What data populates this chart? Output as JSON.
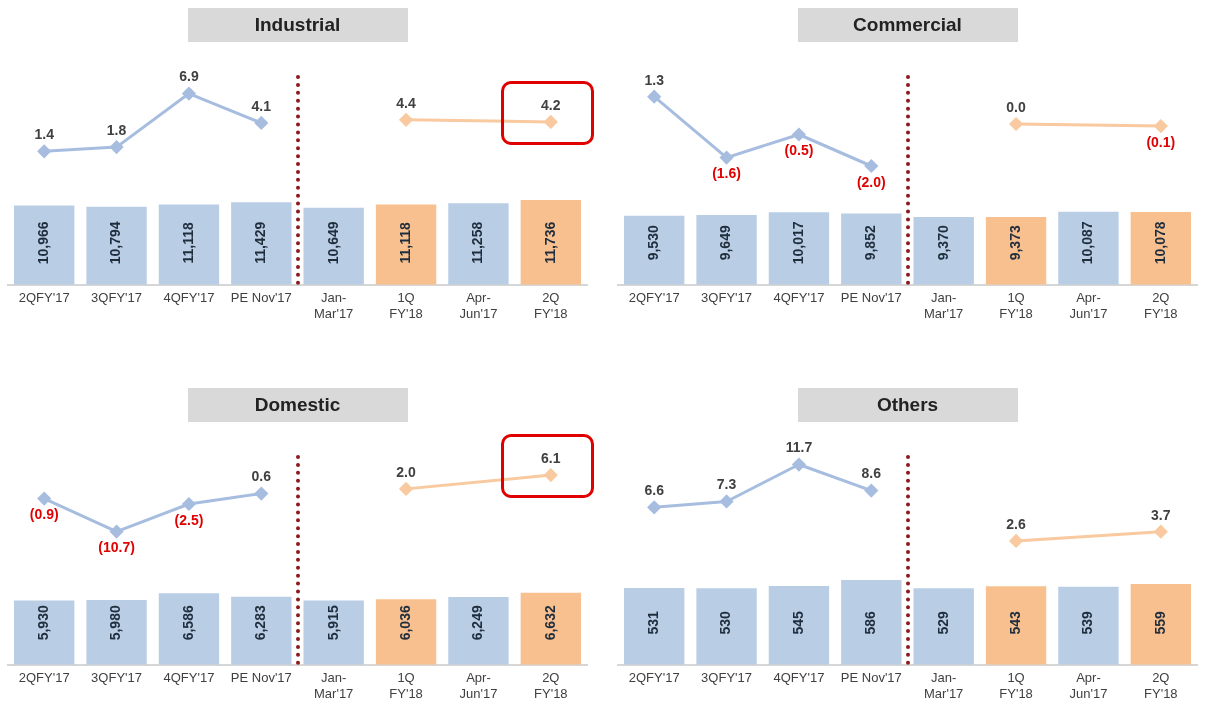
{
  "chart_data": [
    {
      "type": "line",
      "title": "Industrial",
      "categories": [
        null,
        null,
        null,
        null,
        null,
        null,
        null,
        null
      ],
      "tick_labels": false,
      "marker": "diamond",
      "series": [
        {
          "color": "#a7bde0",
          "values": [
            1.4,
            1.8,
            6.9,
            4.1,
            null,
            null,
            null,
            null
          ],
          "value_labels": [
            "1.4",
            "1.8",
            "6.9",
            "4.1",
            null,
            null,
            null,
            null
          ]
        },
        {
          "color": "#f9c9a0",
          "values": [
            null,
            null,
            null,
            null,
            null,
            4.4,
            null,
            4.2
          ],
          "value_labels": [
            null,
            null,
            null,
            null,
            null,
            "4.4",
            null,
            "4.2"
          ]
        }
      ]
    },
    {
      "type": "bar",
      "categories": [
        "2QFY'17",
        "3QFY'17",
        "4QFY'17",
        "PE Nov'17",
        "Jan-\nMar'17",
        "1Q\nFY'18",
        "Apr-\nJun'17",
        "2Q\nFY'18"
      ],
      "tick_labels": "x",
      "colors": [
        "#b9cde5",
        "#b9cde5",
        "#b9cde5",
        "#b9cde5",
        "#b9cde5",
        "#f9c08f",
        "#b9cde5",
        "#f9c08f"
      ],
      "values": [
        10966,
        10794,
        11118,
        11429,
        10649,
        11118,
        11258,
        11736
      ],
      "value_labels": [
        "10,966",
        "10,794",
        "11,118",
        "11,429",
        "10,649",
        "11,118",
        "11,258",
        "11,736"
      ]
    },
    {
      "type": "line",
      "title": "Commercial",
      "categories": [
        null,
        null,
        null,
        null,
        null,
        null,
        null,
        null
      ],
      "tick_labels": false,
      "marker": "diamond",
      "series": [
        {
          "color": "#a7bde0",
          "values": [
            1.3,
            -1.6,
            -0.5,
            -2.0,
            null,
            null,
            null,
            null
          ],
          "value_labels": [
            "1.3",
            "(1.6)",
            "(0.5)",
            "(2.0)",
            null,
            null,
            null,
            null
          ]
        },
        {
          "color": "#f9c9a0",
          "values": [
            null,
            null,
            null,
            null,
            null,
            0.0,
            null,
            -0.1
          ],
          "value_labels": [
            null,
            null,
            null,
            null,
            null,
            "0.0",
            null,
            "(0.1)"
          ]
        }
      ]
    },
    {
      "type": "bar",
      "categories": [
        "2QFY'17",
        "3QFY'17",
        "4QFY'17",
        "PE Nov'17",
        "Jan-\nMar'17",
        "1Q\nFY'18",
        "Apr-\nJun'17",
        "2Q\nFY'18"
      ],
      "tick_labels": "x",
      "colors": [
        "#b9cde5",
        "#b9cde5",
        "#b9cde5",
        "#b9cde5",
        "#b9cde5",
        "#f9c08f",
        "#b9cde5",
        "#f9c08f"
      ],
      "values": [
        9530,
        9649,
        10017,
        9852,
        9370,
        9373,
        10087,
        10078
      ],
      "value_labels": [
        "9,530",
        "9,649",
        "10,017",
        "9,852",
        "9,370",
        "9,373",
        "10,087",
        "10,078"
      ]
    },
    {
      "type": "line",
      "title": "Domestic",
      "categories": [
        null,
        null,
        null,
        null,
        null,
        null,
        null,
        null
      ],
      "tick_labels": false,
      "marker": "diamond",
      "series": [
        {
          "color": "#a7bde0",
          "values": [
            -0.9,
            -10.7,
            -2.5,
            0.6,
            null,
            null,
            null,
            null
          ],
          "value_labels": [
            "(0.9)",
            "(10.7)",
            "(2.5)",
            "0.6",
            null,
            null,
            null,
            null
          ]
        },
        {
          "color": "#f9c9a0",
          "values": [
            null,
            null,
            null,
            null,
            null,
            2.0,
            null,
            6.1
          ],
          "value_labels": [
            null,
            null,
            null,
            null,
            null,
            "2.0",
            null,
            "6.1"
          ]
        }
      ]
    },
    {
      "type": "bar",
      "categories": [
        "2QFY'17",
        "3QFY'17",
        "4QFY'17",
        "PE Nov'17",
        "Jan-\nMar'17",
        "1Q\nFY'18",
        "Apr-\nJun'17",
        "2Q\nFY'18"
      ],
      "tick_labels": "x",
      "colors": [
        "#b9cde5",
        "#b9cde5",
        "#b9cde5",
        "#b9cde5",
        "#b9cde5",
        "#f9c08f",
        "#b9cde5",
        "#f9c08f"
      ],
      "values": [
        5930,
        5980,
        6586,
        6283,
        5915,
        6036,
        6249,
        6632
      ],
      "value_labels": [
        "5,930",
        "5,980",
        "6,586",
        "6,283",
        "5,915",
        "6,036",
        "6,249",
        "6,632"
      ]
    },
    {
      "type": "line",
      "title": "Others",
      "categories": [
        null,
        null,
        null,
        null,
        null,
        null,
        null,
        null
      ],
      "tick_labels": false,
      "marker": "diamond",
      "series": [
        {
          "color": "#a7bde0",
          "values": [
            6.6,
            7.3,
            11.7,
            8.6,
            null,
            null,
            null,
            null
          ],
          "value_labels": [
            "6.6",
            "7.3",
            "11.7",
            "8.6",
            null,
            null,
            null,
            null
          ]
        },
        {
          "color": "#f9c9a0",
          "values": [
            null,
            null,
            null,
            null,
            null,
            2.6,
            null,
            3.7
          ],
          "value_labels": [
            null,
            null,
            null,
            null,
            null,
            "2.6",
            null,
            "3.7"
          ]
        }
      ]
    },
    {
      "type": "bar",
      "categories": [
        "2QFY'17",
        "3QFY'17",
        "4QFY'17",
        "PE Nov'17",
        "Jan-\nMar'17",
        "1Q\nFY'18",
        "Apr-\nJun'17",
        "2Q\nFY'18"
      ],
      "tick_labels": "x",
      "colors": [
        "#b9cde5",
        "#b9cde5",
        "#b9cde5",
        "#b9cde5",
        "#b9cde5",
        "#f9c08f",
        "#b9cde5",
        "#f9c08f"
      ],
      "values": [
        531,
        530,
        545,
        586,
        529,
        543,
        539,
        559
      ],
      "value_labels": [
        "531",
        "530",
        "545",
        "586",
        "529",
        "543",
        "539",
        "559"
      ]
    }
  ]
}
